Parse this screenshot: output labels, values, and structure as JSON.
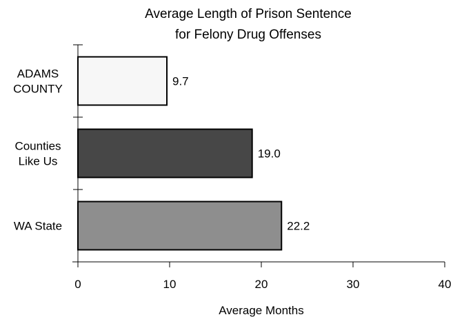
{
  "chart_data": {
    "type": "bar",
    "orientation": "horizontal",
    "title": "Average Length of Prison Sentence for Felony Drug Offenses",
    "title_lines": [
      "Average Length of Prison Sentence",
      "for Felony Drug Offenses"
    ],
    "categories": [
      "ADAMS COUNTY",
      "Counties Like Us",
      "WA State"
    ],
    "category_lines": [
      [
        "ADAMS",
        "COUNTY"
      ],
      [
        "Counties",
        "Like Us"
      ],
      [
        "WA State"
      ]
    ],
    "values": [
      9.7,
      19.0,
      22.2
    ],
    "value_labels": [
      "9.7",
      "19.0",
      "22.2"
    ],
    "bar_colors": [
      "#f7f7f7",
      "#474747",
      "#8e8e8e"
    ],
    "xlabel": "Average Months",
    "ylabel": "",
    "xlim": [
      0,
      40
    ],
    "xticks": [
      0,
      10,
      20,
      30,
      40
    ],
    "xtick_labels": [
      "0",
      "10",
      "20",
      "30",
      "40"
    ],
    "grid": false,
    "legend": "none"
  }
}
